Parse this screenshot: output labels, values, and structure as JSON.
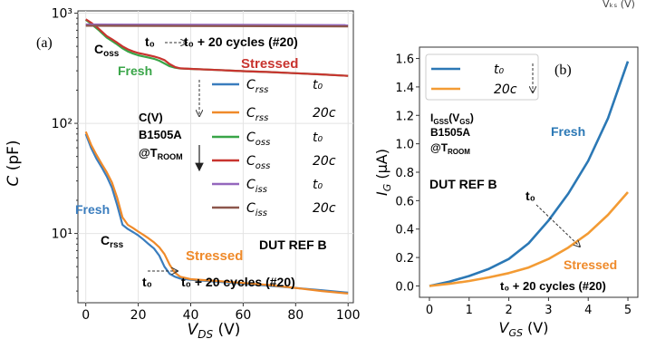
{
  "header_right": "Vₖₛ (V)",
  "chart_data": [
    {
      "type": "line",
      "panel_label": "(a)",
      "xlabel": "V_DS (V)",
      "ylabel": "C (pF)",
      "ylog": true,
      "xlim": [
        -3,
        102
      ],
      "ylim": [
        2.35,
        1050
      ],
      "xticks": [
        0,
        20,
        40,
        60,
        80,
        100
      ],
      "yticks": [
        {
          "v": 10,
          "label": "10¹"
        },
        {
          "v": 100,
          "label": "10²"
        },
        {
          "v": 1000,
          "label": "10³"
        }
      ],
      "grid": true,
      "legend_position": "center-right",
      "legend": [
        {
          "symbol": "C",
          "sub": "rss",
          "cond": "t₀",
          "color": "#3a7dbe"
        },
        {
          "symbol": "C",
          "sub": "rss",
          "cond": "20c",
          "color": "#ef8a2a"
        },
        {
          "symbol": "C",
          "sub": "oss",
          "cond": "t₀",
          "color": "#39a548"
        },
        {
          "symbol": "C",
          "sub": "oss",
          "cond": "20c",
          "color": "#c8342f"
        },
        {
          "symbol": "C",
          "sub": "iss",
          "cond": "t₀",
          "color": "#9467bd"
        },
        {
          "symbol": "C",
          "sub": "iss",
          "cond": "20c",
          "color": "#8c564b"
        }
      ],
      "series": [
        {
          "name": "C_rss t₀",
          "color": "#3a7dbe",
          "x": [
            0,
            2,
            4,
            6,
            8,
            10,
            12,
            14,
            16,
            18,
            20,
            22,
            24,
            26,
            28,
            30,
            32,
            34,
            36,
            40,
            50,
            60,
            70,
            80,
            90,
            100
          ],
          "y": [
            80,
            60,
            48,
            40,
            33,
            26,
            18,
            12,
            11,
            10.3,
            9.6,
            8.8,
            8.0,
            7.3,
            6.3,
            5.0,
            4.3,
            4.05,
            3.9,
            3.8,
            3.65,
            3.5,
            3.35,
            3.2,
            3.05,
            2.9
          ]
        },
        {
          "name": "C_rss 20c",
          "color": "#ef8a2a",
          "x": [
            0,
            2,
            4,
            6,
            8,
            10,
            12,
            14,
            16,
            18,
            20,
            22,
            24,
            26,
            28,
            30,
            32,
            34,
            36,
            40,
            50,
            60,
            70,
            80,
            90,
            100
          ],
          "y": [
            84,
            64,
            52,
            43,
            36,
            29,
            21,
            14,
            12,
            11.2,
            10.4,
            9.7,
            9.0,
            8.3,
            7.5,
            6.5,
            5.2,
            4.4,
            4.05,
            3.85,
            3.7,
            3.55,
            3.4,
            3.2,
            3.0,
            2.85
          ]
        },
        {
          "name": "C_oss t₀",
          "color": "#39a548",
          "x": [
            0,
            2,
            5,
            8,
            10,
            12,
            14,
            16,
            18,
            20,
            22,
            24,
            26,
            28,
            30,
            32,
            34,
            36,
            40,
            50,
            60,
            70,
            80,
            90,
            100
          ],
          "y": [
            870,
            800,
            700,
            600,
            560,
            520,
            480,
            450,
            430,
            415,
            405,
            395,
            385,
            370,
            350,
            330,
            320,
            315,
            312,
            305,
            298,
            292,
            285,
            278,
            270
          ]
        },
        {
          "name": "C_oss 20c",
          "color": "#c8342f",
          "x": [
            0,
            2,
            5,
            8,
            10,
            12,
            14,
            16,
            18,
            20,
            22,
            24,
            26,
            28,
            30,
            32,
            34,
            36,
            40,
            50,
            60,
            70,
            80,
            90,
            100
          ],
          "y": [
            880,
            820,
            720,
            620,
            580,
            540,
            500,
            470,
            450,
            435,
            425,
            415,
            405,
            392,
            375,
            345,
            325,
            316,
            312,
            305,
            298,
            292,
            285,
            278,
            270
          ]
        },
        {
          "name": "C_iss t₀",
          "color": "#9467bd",
          "x": [
            0,
            100
          ],
          "y": [
            790,
            780
          ]
        },
        {
          "name": "C_iss 20c",
          "color": "#8c564b",
          "x": [
            0,
            100
          ],
          "y": [
            770,
            760
          ]
        }
      ],
      "annotations": {
        "coss": {
          "main": "C",
          "sub": "oss"
        },
        "t0_top": "t₀",
        "t20_top": "t₀ + 20 cycles (#20)",
        "stressed_top": "Stressed",
        "fresh_top": "Fresh",
        "cv_lines": [
          "C(V)",
          "B1505A",
          "@T"
        ],
        "cv_sub": "ROOM",
        "fresh_bottom": "Fresh",
        "crss": {
          "main": "C",
          "sub": "rss"
        },
        "stressed_bottom": "Stressed",
        "dut": "DUT REF B",
        "t0_bottom": "t₀",
        "t20_bottom": "t₀ + 20 cycles (#20)"
      }
    },
    {
      "type": "line",
      "panel_label": "(b)",
      "xlabel": "V_GS (V)",
      "ylabel": "I_G (μA)",
      "xlim": [
        -0.25,
        5.25
      ],
      "ylim": [
        -0.08,
        1.68
      ],
      "xticks": [
        0,
        1,
        2,
        3,
        4,
        5
      ],
      "yticks": [
        0.0,
        0.2,
        0.4,
        0.6,
        0.8,
        1.0,
        1.2,
        1.4,
        1.6
      ],
      "grid": false,
      "legend_position": "top-left",
      "legend": [
        {
          "label": "t₀",
          "color": "#2b78b5"
        },
        {
          "label": "20c",
          "color": "#f39b34"
        }
      ],
      "series": [
        {
          "name": "t₀",
          "color": "#2b78b5",
          "x": [
            0,
            0.5,
            1,
            1.5,
            2,
            2.5,
            3,
            3.5,
            4,
            4.5,
            5
          ],
          "y": [
            0.0,
            0.03,
            0.07,
            0.12,
            0.19,
            0.3,
            0.46,
            0.65,
            0.88,
            1.18,
            1.58
          ]
        },
        {
          "name": "20c",
          "color": "#f39b34",
          "x": [
            0,
            0.5,
            1,
            1.5,
            2,
            2.5,
            3,
            3.5,
            4,
            4.5,
            5
          ],
          "y": [
            0.0,
            0.015,
            0.035,
            0.06,
            0.09,
            0.13,
            0.19,
            0.27,
            0.37,
            0.5,
            0.66
          ]
        }
      ],
      "annotations": {
        "ig_lines": [
          "I",
          "B1505A",
          "@T"
        ],
        "ig_sub_1": "GSS",
        "ig_paren": "(V",
        "ig_sub_2": "GS",
        "ig_close": ")",
        "ig_sub_3": "ROOM",
        "fresh": "Fresh",
        "dut": "DUT REF B",
        "t0": "t₀",
        "stressed": "Stressed",
        "t20": "t₀ + 20 cycles (#20)"
      }
    }
  ]
}
